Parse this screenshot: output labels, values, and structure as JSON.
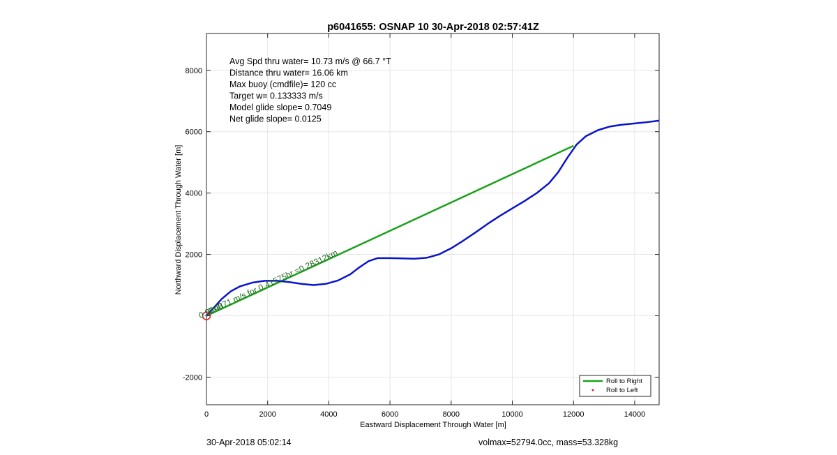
{
  "chart_data": {
    "type": "line",
    "title": "p6041655: OSNAP 10 30-Apr-2018 02:57:41Z",
    "xlabel": "Eastward Displacement Through Water [m]",
    "ylabel": "Northward Displacement Through Water [m]",
    "xlim": [
      0,
      14800
    ],
    "ylim": [
      -2900,
      9200
    ],
    "xticks": [
      0,
      2000,
      4000,
      6000,
      8000,
      10000,
      12000,
      14000
    ],
    "yticks": [
      -2000,
      0,
      2000,
      4000,
      6000,
      8000
    ],
    "ytick_labels": [
      "-2000",
      "",
      "2000",
      "4000",
      "6000",
      "8000"
    ],
    "grid": true,
    "stats_lines": [
      "Avg Spd thru water= 10.73 m/s @  66.7 °T",
      "Distance thru water= 16.06 km",
      "Max buoy (cmdfile)= 120 cc",
      "Target w= 0.133333 m/s",
      "Model glide slope= 0.7049",
      "Net glide slope= 0.0125"
    ],
    "segment_label": "0.4871 m/s for 0.41575hr =0.28312km",
    "origin_label": "0.0000",
    "series": [
      {
        "name": "Roll to Right",
        "color": "#1aa11a",
        "x": [
          0,
          12000
        ],
        "y": [
          0,
          5540
        ]
      },
      {
        "name": "Roll to Left",
        "color": "#dd2222",
        "marker": "dot",
        "x": [],
        "y": []
      }
    ],
    "track": {
      "color": "#0a14c8",
      "x": [
        0,
        200,
        500,
        800,
        1100,
        1500,
        1900,
        2300,
        2700,
        3100,
        3500,
        3900,
        4300,
        4700,
        5000,
        5300,
        5600,
        6000,
        6400,
        6800,
        7200,
        7600,
        8000,
        8400,
        8800,
        9200,
        9600,
        10000,
        10400,
        10800,
        11200,
        11500,
        11800,
        12100,
        12400,
        12800,
        13200,
        13600,
        14000,
        14400,
        14800
      ],
      "y": [
        0,
        220,
        550,
        800,
        960,
        1080,
        1140,
        1140,
        1100,
        1040,
        1000,
        1040,
        1150,
        1350,
        1580,
        1780,
        1880,
        1880,
        1870,
        1860,
        1890,
        2000,
        2200,
        2450,
        2720,
        3000,
        3260,
        3500,
        3740,
        4000,
        4320,
        4680,
        5150,
        5580,
        5850,
        6050,
        6170,
        6230,
        6270,
        6310,
        6360
      ]
    },
    "origin_marker_color": "#dd2222",
    "legend_position": "bottom-right"
  },
  "footer": {
    "timestamp": "30-Apr-2018 05:02:14",
    "vol_mass": "volmax=52794.0cc, mass=53.328kg"
  }
}
